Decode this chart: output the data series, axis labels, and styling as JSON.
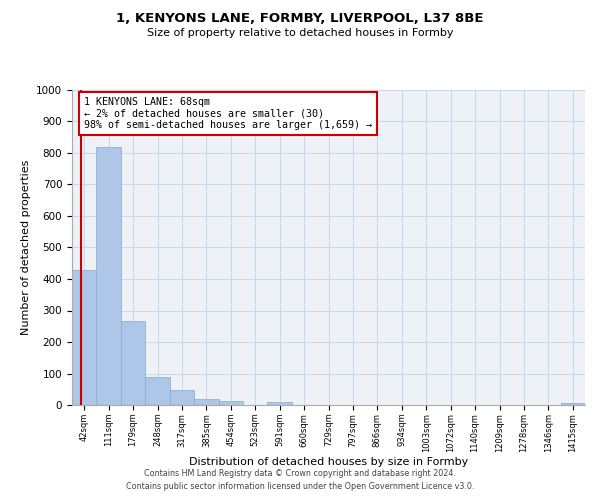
{
  "title1": "1, KENYONS LANE, FORMBY, LIVERPOOL, L37 8BE",
  "title2": "Size of property relative to detached houses in Formby",
  "xlabel": "Distribution of detached houses by size in Formby",
  "ylabel": "Number of detached properties",
  "bins": [
    42,
    111,
    179,
    248,
    317,
    385,
    454,
    523,
    591,
    660,
    729,
    797,
    866,
    934,
    1003,
    1072,
    1140,
    1209,
    1278,
    1346,
    1415
  ],
  "bin_labels": [
    "42sqm",
    "111sqm",
    "179sqm",
    "248sqm",
    "317sqm",
    "385sqm",
    "454sqm",
    "523sqm",
    "591sqm",
    "660sqm",
    "729sqm",
    "797sqm",
    "866sqm",
    "934sqm",
    "1003sqm",
    "1072sqm",
    "1140sqm",
    "1209sqm",
    "1278sqm",
    "1346sqm",
    "1415sqm"
  ],
  "values": [
    430,
    818,
    268,
    90,
    48,
    20,
    12,
    0,
    8,
    0,
    0,
    0,
    0,
    0,
    0,
    0,
    0,
    0,
    0,
    0,
    5
  ],
  "bar_color": "#aec6e8",
  "bar_edge_color": "#88aad0",
  "property_line_color": "#cc0000",
  "annotation_text": "1 KENYONS LANE: 68sqm\n← 2% of detached houses are smaller (30)\n98% of semi-detached houses are larger (1,659) →",
  "annotation_box_color": "#cc0000",
  "ylim": [
    0,
    1000
  ],
  "yticks": [
    0,
    100,
    200,
    300,
    400,
    500,
    600,
    700,
    800,
    900,
    1000
  ],
  "footer1": "Contains HM Land Registry data © Crown copyright and database right 2024.",
  "footer2": "Contains public sector information licensed under the Open Government Licence v3.0.",
  "grid_color": "#c8d8e8",
  "bg_color": "#eef2f7"
}
